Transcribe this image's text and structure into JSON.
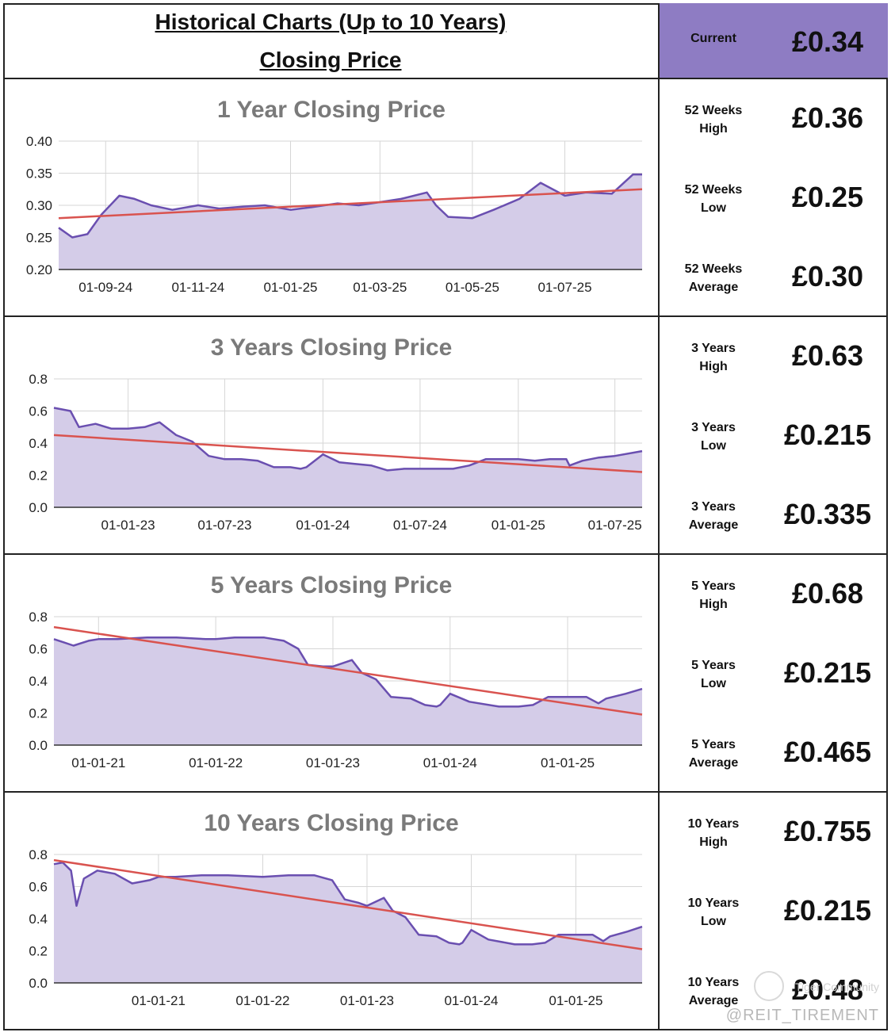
{
  "header": {
    "title_line1": "Historical Charts (Up to 10 Years)",
    "title_line2": "Closing Price",
    "current_label": "Current",
    "current_value": "£0.34",
    "accent_color": "#8e7cc3"
  },
  "stats": [
    [
      {
        "label": [
          "52 Weeks",
          "High"
        ],
        "value": "£0.36"
      },
      {
        "label": [
          "52 Weeks",
          "Low"
        ],
        "value": "£0.25"
      },
      {
        "label": [
          "52 Weeks",
          "Average"
        ],
        "value": "£0.30"
      }
    ],
    [
      {
        "label": [
          "3 Years",
          "High"
        ],
        "value": "£0.63"
      },
      {
        "label": [
          "3 Years",
          "Low"
        ],
        "value": "£0.215"
      },
      {
        "label": [
          "3 Years",
          "Average"
        ],
        "value": "£0.335"
      }
    ],
    [
      {
        "label": [
          "5 Years",
          "High"
        ],
        "value": "£0.68"
      },
      {
        "label": [
          "5 Years",
          "Low"
        ],
        "value": "£0.215"
      },
      {
        "label": [
          "5 Years",
          "Average"
        ],
        "value": "£0.465"
      }
    ],
    [
      {
        "label": [
          "10 Years",
          "High"
        ],
        "value": "£0.755"
      },
      {
        "label": [
          "10 Years",
          "Low"
        ],
        "value": "£0.215"
      },
      {
        "label": [
          "10 Years",
          "Average"
        ],
        "value": "£0.48"
      }
    ]
  ],
  "watermark": {
    "handle": "@REIT_TIREMENT",
    "small_text": "Tiger Community"
  },
  "chart_data": [
    {
      "type": "area",
      "title": "1 Year Closing Price",
      "x": [
        "2024-08-01",
        "2024-08-10",
        "2024-08-20",
        "2024-08-29",
        "2024-09-10",
        "2024-09-20",
        "2024-10-01",
        "2024-10-15",
        "2024-11-01",
        "2024-11-15",
        "2024-12-01",
        "2024-12-15",
        "2025-01-01",
        "2025-01-15",
        "2025-02-01",
        "2025-02-15",
        "2025-03-01",
        "2025-03-15",
        "2025-04-01",
        "2025-04-07",
        "2025-04-15",
        "2025-05-01",
        "2025-05-15",
        "2025-06-01",
        "2025-06-15",
        "2025-07-01",
        "2025-07-15",
        "2025-08-01",
        "2025-08-15",
        "2025-08-21"
      ],
      "series": [
        {
          "values": [
            0.265,
            0.25,
            0.255,
            0.285,
            0.315,
            0.31,
            0.3,
            0.293,
            0.3,
            0.295,
            0.298,
            0.3,
            0.293,
            0.297,
            0.303,
            0.3,
            0.305,
            0.31,
            0.32,
            0.3,
            0.282,
            0.28,
            0.293,
            0.31,
            0.335,
            0.315,
            0.32,
            0.318,
            0.348,
            0.348
          ],
          "color": "#6a4fb0",
          "fill": "#d4cce8"
        }
      ],
      "trend": {
        "x": [
          "2024-08-01",
          "2025-08-21"
        ],
        "y": [
          0.28,
          0.325
        ],
        "color": "#d9534f"
      },
      "x_ticks": [
        "2024-09-01",
        "2024-11-01",
        "2025-01-01",
        "2025-03-01",
        "2025-05-01",
        "2025-07-01"
      ],
      "x_tick_labels": [
        "01-09-24",
        "01-11-24",
        "01-01-25",
        "01-03-25",
        "01-05-25",
        "01-07-25"
      ],
      "ylim": [
        0.2,
        0.4
      ],
      "y_ticks": [
        0.2,
        0.25,
        0.3,
        0.35,
        0.4
      ],
      "y_tick_labels": [
        "0.20",
        "0.25",
        "0.30",
        "0.35",
        "0.40"
      ],
      "xlim": [
        "2024-08-01",
        "2025-08-21"
      ],
      "grid": true
    },
    {
      "type": "area",
      "title": "3 Years Closing Price",
      "x": [
        "2022-08-15",
        "2022-09-15",
        "2022-10-01",
        "2022-11-01",
        "2022-12-01",
        "2023-01-01",
        "2023-02-01",
        "2023-03-01",
        "2023-04-01",
        "2023-05-01",
        "2023-06-01",
        "2023-07-01",
        "2023-08-01",
        "2023-09-01",
        "2023-10-01",
        "2023-11-01",
        "2023-11-20",
        "2023-12-01",
        "2024-01-01",
        "2024-02-01",
        "2024-03-01",
        "2024-04-01",
        "2024-05-01",
        "2024-06-01",
        "2024-07-01",
        "2024-08-01",
        "2024-09-01",
        "2024-10-01",
        "2024-11-01",
        "2024-12-01",
        "2025-01-01",
        "2025-02-01",
        "2025-03-01",
        "2025-04-01",
        "2025-04-07",
        "2025-05-01",
        "2025-06-01",
        "2025-07-01",
        "2025-08-21"
      ],
      "series": [
        {
          "values": [
            0.62,
            0.6,
            0.5,
            0.52,
            0.49,
            0.49,
            0.5,
            0.53,
            0.45,
            0.41,
            0.32,
            0.3,
            0.3,
            0.29,
            0.25,
            0.25,
            0.24,
            0.25,
            0.33,
            0.28,
            0.27,
            0.26,
            0.23,
            0.24,
            0.24,
            0.24,
            0.24,
            0.26,
            0.3,
            0.3,
            0.3,
            0.29,
            0.3,
            0.3,
            0.26,
            0.29,
            0.31,
            0.32,
            0.35
          ],
          "color": "#6a4fb0",
          "fill": "#d4cce8"
        }
      ],
      "trend": {
        "x": [
          "2022-08-15",
          "2025-08-21"
        ],
        "y": [
          0.45,
          0.22
        ],
        "color": "#d9534f"
      },
      "x_ticks": [
        "2023-01-01",
        "2023-07-01",
        "2024-01-01",
        "2024-07-01",
        "2025-01-01",
        "2025-07-01"
      ],
      "x_tick_labels": [
        "01-01-23",
        "01-07-23",
        "01-01-24",
        "01-07-24",
        "01-01-25",
        "01-07-25"
      ],
      "ylim": [
        0.0,
        0.8
      ],
      "y_ticks": [
        0.0,
        0.2,
        0.4,
        0.6,
        0.8
      ],
      "y_tick_labels": [
        "0.0",
        "0.2",
        "0.4",
        "0.6",
        "0.8"
      ],
      "xlim": [
        "2022-08-15",
        "2025-08-21"
      ],
      "grid": true
    },
    {
      "type": "area",
      "title": "5 Years Closing Price",
      "x": [
        "2020-08-15",
        "2020-09-15",
        "2020-10-15",
        "2020-12-01",
        "2021-01-01",
        "2021-03-01",
        "2021-06-01",
        "2021-09-01",
        "2021-12-01",
        "2022-01-01",
        "2022-03-01",
        "2022-06-01",
        "2022-08-01",
        "2022-09-15",
        "2022-10-15",
        "2022-12-01",
        "2023-01-01",
        "2023-03-01",
        "2023-04-01",
        "2023-05-15",
        "2023-07-01",
        "2023-09-01",
        "2023-10-15",
        "2023-11-20",
        "2023-12-01",
        "2024-01-01",
        "2024-03-01",
        "2024-06-01",
        "2024-08-01",
        "2024-09-15",
        "2024-11-01",
        "2025-01-01",
        "2025-03-01",
        "2025-04-07",
        "2025-05-01",
        "2025-07-01",
        "2025-08-21"
      ],
      "series": [
        {
          "values": [
            0.66,
            0.64,
            0.62,
            0.65,
            0.66,
            0.66,
            0.67,
            0.67,
            0.66,
            0.66,
            0.67,
            0.67,
            0.65,
            0.6,
            0.5,
            0.49,
            0.49,
            0.53,
            0.45,
            0.41,
            0.3,
            0.29,
            0.25,
            0.24,
            0.25,
            0.32,
            0.27,
            0.24,
            0.24,
            0.25,
            0.3,
            0.3,
            0.3,
            0.26,
            0.29,
            0.32,
            0.35
          ],
          "color": "#6a4fb0",
          "fill": "#d4cce8"
        }
      ],
      "trend": {
        "x": [
          "2020-08-15",
          "2025-08-21"
        ],
        "y": [
          0.735,
          0.19
        ],
        "color": "#d9534f"
      },
      "x_ticks": [
        "2021-01-01",
        "2022-01-01",
        "2023-01-01",
        "2024-01-01",
        "2025-01-01"
      ],
      "x_tick_labels": [
        "01-01-21",
        "01-01-22",
        "01-01-23",
        "01-01-24",
        "01-01-25"
      ],
      "ylim": [
        0.0,
        0.8
      ],
      "y_ticks": [
        0.0,
        0.2,
        0.4,
        0.6,
        0.8
      ],
      "y_tick_labels": [
        "0.0",
        "0.2",
        "0.4",
        "0.6",
        "0.8"
      ],
      "xlim": [
        "2020-08-15",
        "2025-08-21"
      ],
      "grid": true
    },
    {
      "type": "area",
      "title": "10 Years Closing Price",
      "x": [
        "2020-01-01",
        "2020-02-01",
        "2020-03-01",
        "2020-03-20",
        "2020-04-15",
        "2020-06-01",
        "2020-08-01",
        "2020-10-01",
        "2020-12-01",
        "2021-01-01",
        "2021-03-01",
        "2021-06-01",
        "2021-09-01",
        "2022-01-01",
        "2022-04-01",
        "2022-07-01",
        "2022-09-01",
        "2022-10-15",
        "2022-12-01",
        "2023-01-01",
        "2023-03-01",
        "2023-04-01",
        "2023-05-15",
        "2023-07-01",
        "2023-09-01",
        "2023-10-15",
        "2023-11-20",
        "2023-12-01",
        "2024-01-01",
        "2024-03-01",
        "2024-06-01",
        "2024-08-01",
        "2024-09-15",
        "2024-11-01",
        "2025-01-01",
        "2025-03-01",
        "2025-04-07",
        "2025-05-01",
        "2025-07-01",
        "2025-08-21"
      ],
      "series": [
        {
          "values": [
            0.74,
            0.75,
            0.7,
            0.48,
            0.65,
            0.7,
            0.68,
            0.62,
            0.64,
            0.66,
            0.66,
            0.67,
            0.67,
            0.66,
            0.67,
            0.67,
            0.64,
            0.52,
            0.5,
            0.48,
            0.53,
            0.45,
            0.41,
            0.3,
            0.29,
            0.25,
            0.24,
            0.25,
            0.33,
            0.27,
            0.24,
            0.24,
            0.25,
            0.3,
            0.3,
            0.3,
            0.26,
            0.29,
            0.32,
            0.35
          ],
          "color": "#6a4fb0",
          "fill": "#d4cce8"
        }
      ],
      "trend": {
        "x": [
          "2020-01-01",
          "2025-08-21"
        ],
        "y": [
          0.765,
          0.21
        ],
        "color": "#d9534f"
      },
      "x_ticks": [
        "2021-01-01",
        "2022-01-01",
        "2023-01-01",
        "2024-01-01",
        "2025-01-01"
      ],
      "x_tick_labels": [
        "01-01-21",
        "01-01-22",
        "01-01-23",
        "01-01-24",
        "01-01-25"
      ],
      "ylim": [
        0.0,
        0.8
      ],
      "y_ticks": [
        0.0,
        0.2,
        0.4,
        0.6,
        0.8
      ],
      "y_tick_labels": [
        "0.0",
        "0.2",
        "0.4",
        "0.6",
        "0.8"
      ],
      "xlim": [
        "2020-01-01",
        "2025-08-21"
      ],
      "grid": true
    }
  ]
}
